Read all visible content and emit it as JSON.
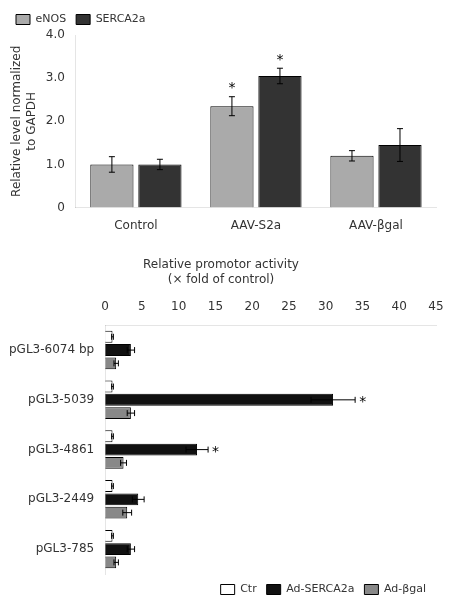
{
  "chart_data": [
    {
      "type": "bar",
      "categories": [
        "Control",
        "AAV-S2a",
        "AAV-βgal"
      ],
      "series": [
        {
          "name": "eNOS",
          "color": "#aaaaaa",
          "values": [
            1.0,
            2.35,
            1.2
          ],
          "errors": [
            0.18,
            0.22,
            0.12
          ]
        },
        {
          "name": "SERCA2a",
          "color": "#333333",
          "values": [
            1.0,
            3.05,
            1.45
          ],
          "errors": [
            0.12,
            0.18,
            0.38
          ]
        }
      ],
      "ylabel": "Relative level normalized\nto GAPDH",
      "ylim": [
        0,
        4.0
      ],
      "yticks": [
        0,
        {
          "value": 1.0,
          "label": "1.0"
        },
        {
          "value": 2.0,
          "label": "2.0"
        },
        {
          "value": 3.0,
          "label": "3.0"
        },
        {
          "value": 4.0,
          "label": "4.0"
        }
      ],
      "grid": false,
      "legend": "upper left",
      "annotations": [
        {
          "text": "*",
          "series": "eNOS",
          "category": "AAV-S2a"
        },
        {
          "text": "*",
          "series": "SERCA2a",
          "category": "AAV-S2a"
        }
      ]
    },
    {
      "type": "bar",
      "orientation": "horizontal",
      "title": "Relative promotor activity\n(× fold of control)",
      "categories": [
        "pGL3-6074 bp",
        "pGL3-5039",
        "pGL3-4861",
        "pGL3-2449",
        "pGL3-785"
      ],
      "series": [
        {
          "name": "Ctr",
          "color": "#ffffff",
          "values": [
            1.0,
            1.0,
            1.0,
            1.0,
            1.0
          ],
          "errors": [
            0.12,
            0.12,
            0.12,
            0.12,
            0.12
          ]
        },
        {
          "name": "Ad-SERCA2a",
          "color": "#111111",
          "values": [
            3.5,
            31.0,
            12.5,
            4.5,
            3.5
          ],
          "errors": [
            0.5,
            3.0,
            1.5,
            0.8,
            0.5
          ]
        },
        {
          "name": "Ad-βgal",
          "color": "#888888",
          "values": [
            1.5,
            3.5,
            2.5,
            3.0,
            1.5
          ],
          "errors": [
            0.3,
            0.5,
            0.4,
            0.6,
            0.3
          ]
        }
      ],
      "xlim": [
        0,
        45
      ],
      "xticks": [
        0,
        5,
        10,
        15,
        20,
        25,
        30,
        35,
        40,
        45
      ],
      "grid": false,
      "legend": "lower right",
      "annotations": [
        {
          "text": "*",
          "series": "Ad-SERCA2a",
          "category": "pGL3-5039"
        },
        {
          "text": "*",
          "series": "Ad-SERCA2a",
          "category": "pGL3-4861"
        }
      ]
    }
  ]
}
